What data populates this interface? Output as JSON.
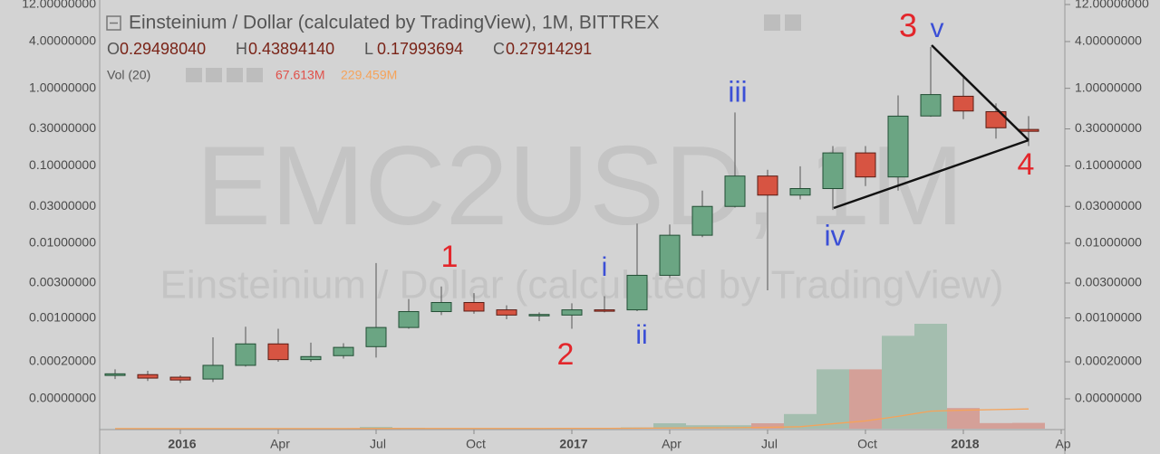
{
  "chart_data": {
    "type": "candlestick",
    "title": "Einsteinium / Dollar (calculated by TradingView), 1M, BITTREX",
    "watermark": "EMC2USD, 1M",
    "watermark_subtitle": "Einsteinium / Dollar (calculated by TradingView)",
    "ohlc_legend": [
      {
        "name": "O",
        "label": "0.29498040"
      },
      {
        "name": "H",
        "label": "0.43894140"
      },
      {
        "name": "L",
        "label": "0.17993694"
      },
      {
        "name": "C",
        "label": "0.27914291"
      }
    ],
    "volume_legend": "Vol (20)",
    "log_scale": true,
    "up_color": "#6ba583",
    "down_color": "#d75442",
    "categories": [
      null,
      null,
      "2016",
      null,
      null,
      "Apr",
      null,
      null,
      "Jul",
      null,
      null,
      "Oct",
      null,
      null,
      "2017",
      null,
      null,
      "Apr",
      null,
      null,
      "Jul",
      null,
      null,
      "Oct",
      null,
      null,
      "2018",
      null,
      null,
      "Ap"
    ],
    "open": [
      0.0001,
      0.000105,
      9e-05,
      8e-05,
      0.00017,
      0.00041,
      0.00022,
      0.00026,
      0.00037,
      0.00073,
      0.00123,
      0.00164,
      0.0013,
      0.0011,
      0.0011,
      0.0013,
      0.0013,
      0.0038,
      0.0127,
      0.03,
      0.074,
      0.042,
      0.051,
      0.147,
      0.072,
      0.44,
      0.79,
      0.5,
      0.2949804,
      null
    ],
    "high": [
      0.00014,
      0.00013,
      0.0001,
      0.00052,
      0.00075,
      0.0007,
      0.00043,
      0.00042,
      0.0055,
      0.00183,
      0.0027,
      0.0022,
      0.0015,
      0.0012,
      0.0016,
      0.002,
      0.018,
      0.0175,
      0.048,
      0.488,
      0.089,
      0.099,
      0.18,
      0.18,
      0.81,
      3.4,
      1.45,
      0.64,
      0.4389414,
      null
    ],
    "low": [
      8e-05,
      7e-05,
      6e-05,
      6.5e-05,
      0.00016,
      0.0002,
      0.0002,
      0.00023,
      0.00024,
      0.0007,
      0.0011,
      0.00115,
      0.00096,
      0.0009,
      0.0007,
      0.0012,
      0.00125,
      0.0035,
      0.012,
      0.029,
      0.0024,
      0.037,
      0.027,
      0.055,
      0.048,
      0.43,
      0.4,
      0.225,
      0.17993694,
      null
    ],
    "close": [
      0.00011,
      8.5e-05,
      7.5e-05,
      0.00017,
      0.00041,
      0.00022,
      0.00025,
      0.00036,
      0.00073,
      0.00123,
      0.00164,
      0.00125,
      0.0011,
      0.00112,
      0.0013,
      0.00125,
      0.0038,
      0.0127,
      0.03,
      0.074,
      0.042,
      0.051,
      0.147,
      0.072,
      0.438,
      0.83,
      0.51,
      0.31,
      0.27914291,
      null
    ],
    "volume": {
      "name": "Vol",
      "color": "#e0504a",
      "values": [
        0.5,
        0.5,
        0.3,
        1,
        1,
        1,
        0.5,
        1,
        20,
        10,
        5,
        5,
        4,
        4,
        8,
        10,
        15,
        63,
        40,
        40,
        63,
        170,
        690,
        690,
        1080,
        1220,
        240,
        65,
        67.613,
        null
      ],
      "value_labels": [
        null,
        null,
        null,
        null,
        null,
        null,
        null,
        null,
        null,
        null,
        null,
        null,
        null,
        null,
        null,
        null,
        null,
        null,
        null,
        null,
        null,
        null,
        null,
        null,
        null,
        null,
        null,
        null,
        "67.613M",
        null
      ]
    },
    "volume_ma": {
      "name": "MA",
      "color": "#f5a35a",
      "values": [
        1,
        1,
        1,
        1,
        1,
        1,
        1,
        1,
        2,
        3,
        3,
        3,
        3,
        3,
        4,
        4,
        5,
        8,
        10,
        12,
        15,
        23,
        57,
        90,
        143,
        204,
        215,
        222,
        229.459,
        null
      ],
      "value_labels": [
        null,
        null,
        null,
        null,
        null,
        null,
        null,
        null,
        null,
        null,
        null,
        null,
        null,
        null,
        null,
        null,
        null,
        null,
        null,
        null,
        null,
        null,
        null,
        null,
        null,
        null,
        null,
        null,
        "229.459M",
        null
      ]
    },
    "ylim": [
      0,
      12
    ],
    "yticks": [
      {
        "value": 12,
        "label": "12.00000000"
      },
      {
        "value": 4,
        "label": "4.00000000"
      },
      {
        "value": 1,
        "label": "1.00000000"
      },
      {
        "value": 0.3,
        "label": "0.30000000"
      },
      {
        "value": 0.1,
        "label": "0.10000000"
      },
      {
        "value": 0.03,
        "label": "0.03000000"
      },
      {
        "value": 0.01,
        "label": "0.01000000"
      },
      {
        "value": 0.003,
        "label": "0.00300000"
      },
      {
        "value": 0.001,
        "label": "0.00100000"
      },
      {
        "value": 0.0002,
        "label": "0.00020000"
      },
      {
        "value": 0,
        "label": "0.00000000"
      }
    ],
    "annotations": [
      {
        "text": "1",
        "color": "#e3262b"
      },
      {
        "text": "2",
        "color": "#e3262b"
      },
      {
        "text": "i",
        "color": "#3b4fd6"
      },
      {
        "text": "ii",
        "color": "#3b4fd6"
      },
      {
        "text": "iii",
        "color": "#3b4fd6"
      },
      {
        "text": "iv",
        "color": "#3b4fd6"
      },
      {
        "text": "3",
        "color": "#e3262b"
      },
      {
        "text": "v",
        "color": "#3b4fd6"
      },
      {
        "text": "4",
        "color": "#e3262b"
      }
    ]
  }
}
